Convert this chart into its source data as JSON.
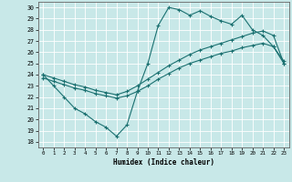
{
  "xlabel": "Humidex (Indice chaleur)",
  "xlim": [
    -0.5,
    23.5
  ],
  "ylim": [
    17.5,
    30.5
  ],
  "yticks": [
    18,
    19,
    20,
    21,
    22,
    23,
    24,
    25,
    26,
    27,
    28,
    29,
    30
  ],
  "xticks": [
    0,
    1,
    2,
    3,
    4,
    5,
    6,
    7,
    8,
    9,
    10,
    11,
    12,
    13,
    14,
    15,
    16,
    17,
    18,
    19,
    20,
    21,
    22,
    23
  ],
  "bg_color": "#c8e8e8",
  "grid_color": "#ffffff",
  "line_color": "#1a7070",
  "line1_x": [
    0,
    1,
    2,
    3,
    4,
    5,
    6,
    7,
    8,
    9,
    10,
    11,
    12,
    13,
    14,
    15,
    16,
    17,
    18,
    19,
    20,
    21,
    22,
    23
  ],
  "line1_y": [
    24,
    23,
    22,
    21,
    20.5,
    19.8,
    19.3,
    18.5,
    19.5,
    22.5,
    25.0,
    28.4,
    30.0,
    29.8,
    29.3,
    29.7,
    29.2,
    28.8,
    28.5,
    29.3,
    28.0,
    27.5,
    26.5,
    25.0
  ],
  "line2_x": [
    0,
    1,
    2,
    3,
    4,
    5,
    6,
    7,
    8,
    9,
    10,
    11,
    12,
    13,
    14,
    15,
    16,
    17,
    18,
    19,
    20,
    21,
    22,
    23
  ],
  "line2_y": [
    24,
    23.7,
    23.4,
    23.1,
    22.9,
    22.6,
    22.4,
    22.2,
    22.5,
    23.0,
    23.6,
    24.2,
    24.8,
    25.3,
    25.8,
    26.2,
    26.5,
    26.8,
    27.1,
    27.4,
    27.7,
    27.9,
    27.5,
    25.0
  ],
  "line3_x": [
    0,
    1,
    2,
    3,
    4,
    5,
    6,
    7,
    8,
    9,
    10,
    11,
    12,
    13,
    14,
    15,
    16,
    17,
    18,
    19,
    20,
    21,
    22,
    23
  ],
  "line3_y": [
    23.7,
    23.4,
    23.1,
    22.8,
    22.6,
    22.3,
    22.1,
    21.9,
    22.1,
    22.5,
    23.0,
    23.6,
    24.1,
    24.6,
    25.0,
    25.3,
    25.6,
    25.9,
    26.1,
    26.4,
    26.6,
    26.8,
    26.5,
    25.2
  ]
}
